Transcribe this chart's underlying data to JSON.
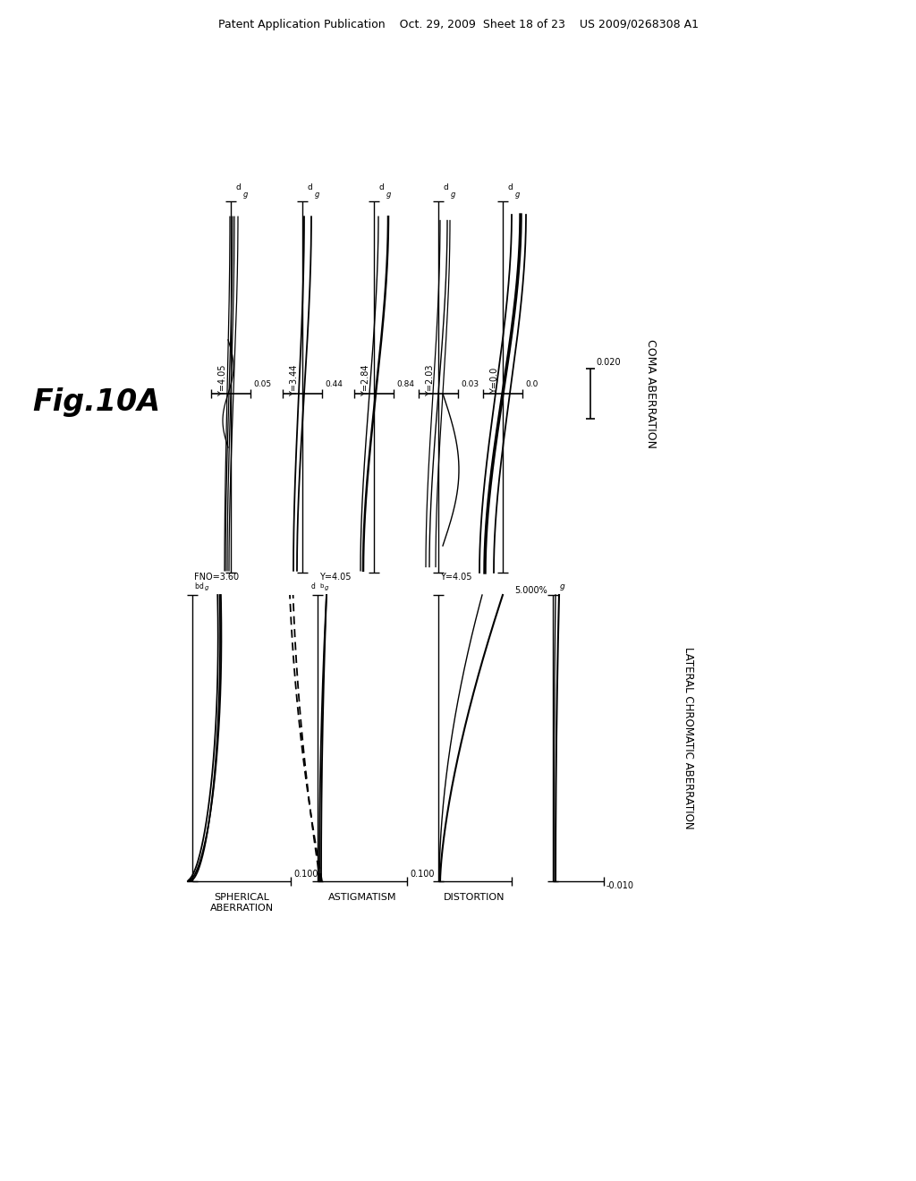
{
  "background_color": "#ffffff",
  "patent_header": "Patent Application Publication    Oct. 29, 2009  Sheet 18 of 23    US 2009/0268308 A1",
  "fig_label": "Fig.10A",
  "coma_title": "COMA ABERRATION",
  "coma_scale_text": "0.020",
  "distortion_title": "DISTORTION",
  "distortion_scale_text": "5.000%",
  "astigmatism_title": "ASTIGMATISM",
  "astigmatism_scale_text": "0.100",
  "spherical_title_1": "SPHERICAL",
  "spherical_title_2": "ABERRATION",
  "spherical_scale_text": "0.100",
  "spherical_label": "FNO=3.60",
  "lateral_title": "LATERAL CHROMATIC ABERRATION",
  "lateral_scale_text": "-0.010",
  "coma_y_labels": [
    "Y=4.05",
    "Y=3.44",
    "Y=2.84",
    "Y=2.03",
    "Y=0.0"
  ],
  "coma_x_scales": [
    "0.05",
    "0.44",
    "0.84",
    "0.03",
    "0.0"
  ]
}
